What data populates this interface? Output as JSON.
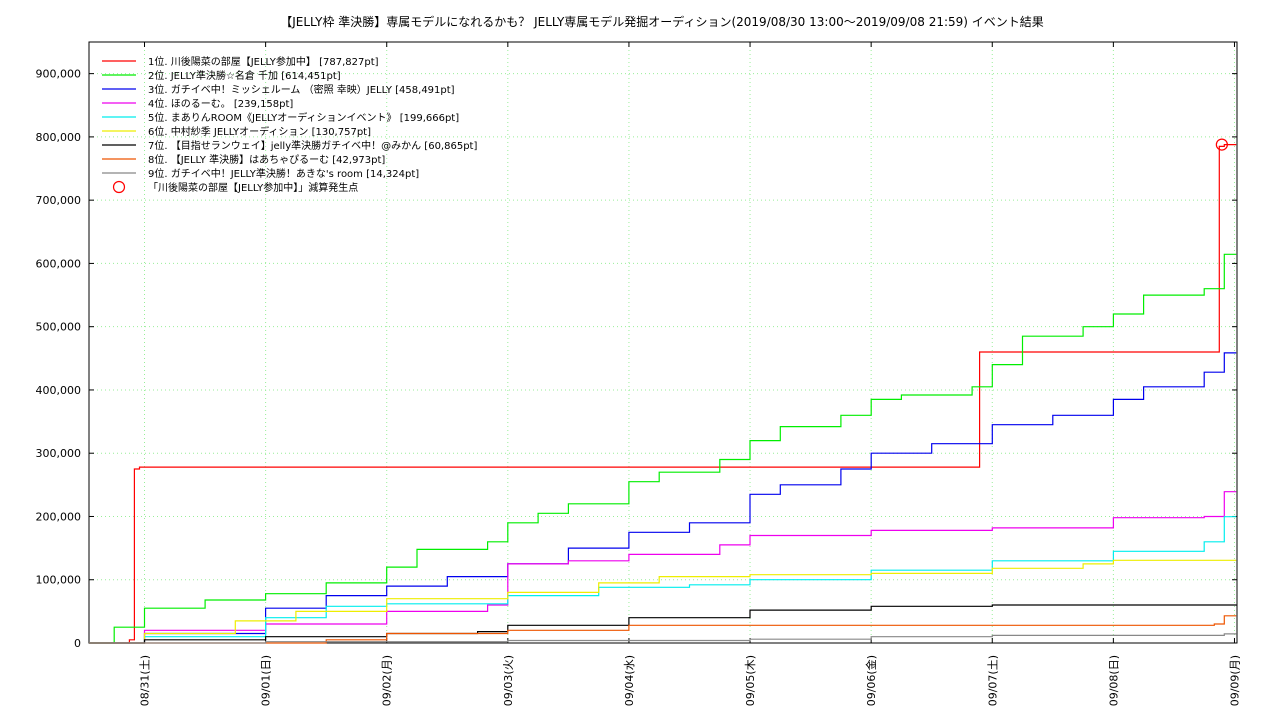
{
  "chart_data": {
    "type": "line",
    "title": "【JELLY枠 準決勝】専属モデルになれるかも？ JELLY専属モデル発掘オーディション(2019/08/30 13:00〜2019/09/08 21:59)          イベント結果",
    "xlabel": "",
    "ylabel": "",
    "x_range": [
      "2019-08-30T13:00",
      "2019-09-09T00:30"
    ],
    "ylim": [
      0,
      950000
    ],
    "grid": true,
    "legend_position": "top-left",
    "x_tick_labels": [
      {
        "t": "2019-08-31T00:00",
        "label": "08/31(土)"
      },
      {
        "t": "2019-09-01T00:00",
        "label": "09/01(日)"
      },
      {
        "t": "2019-09-02T00:00",
        "label": "09/02(月)"
      },
      {
        "t": "2019-09-03T00:00",
        "label": "09/03(火)"
      },
      {
        "t": "2019-09-04T00:00",
        "label": "09/04(水)"
      },
      {
        "t": "2019-09-05T00:00",
        "label": "09/05(木)"
      },
      {
        "t": "2019-09-06T00:00",
        "label": "09/06(金)"
      },
      {
        "t": "2019-09-07T00:00",
        "label": "09/07(土)"
      },
      {
        "t": "2019-09-08T00:00",
        "label": "09/08(日)"
      },
      {
        "t": "2019-09-09T00:00",
        "label": "09/09(月)"
      }
    ],
    "y_ticks": [
      {
        "v": 0,
        "label": "0"
      },
      {
        "v": 100000,
        "label": "100,000"
      },
      {
        "v": 200000,
        "label": "200,000"
      },
      {
        "v": 300000,
        "label": "300,000"
      },
      {
        "v": 400000,
        "label": "400,000"
      },
      {
        "v": 500000,
        "label": "500,000"
      },
      {
        "v": 600000,
        "label": "600,000"
      },
      {
        "v": 700000,
        "label": "700,000"
      },
      {
        "v": 800000,
        "label": "800,000"
      },
      {
        "v": 900000,
        "label": "900,000"
      }
    ],
    "series": [
      {
        "name": "1位. 川後陽菜の部屋【JELLY参加中】 [787,827pt]",
        "color": "#ff0000",
        "points": [
          [
            "2019-08-30T13:00",
            0
          ],
          [
            "2019-08-30T21:00",
            5000
          ],
          [
            "2019-08-30T22:00",
            275000
          ],
          [
            "2019-08-30T23:00",
            278000
          ],
          [
            "2019-09-06T21:00",
            278000
          ],
          [
            "2019-09-06T21:30",
            460000
          ],
          [
            "2019-09-08T20:30",
            460000
          ],
          [
            "2019-09-08T21:00",
            785000
          ],
          [
            "2019-09-08T21:59",
            787827
          ],
          [
            "2019-09-09T00:20",
            787827
          ]
        ]
      },
      {
        "name": "2位. JELLY準決勝☆名倉 千加 [614,451pt]",
        "color": "#00ee00",
        "points": [
          [
            "2019-08-30T13:00",
            0
          ],
          [
            "2019-08-30T18:00",
            25000
          ],
          [
            "2019-08-31T00:00",
            55000
          ],
          [
            "2019-08-31T12:00",
            68000
          ],
          [
            "2019-09-01T00:00",
            78000
          ],
          [
            "2019-09-01T12:00",
            95000
          ],
          [
            "2019-09-02T00:00",
            120000
          ],
          [
            "2019-09-02T06:00",
            148000
          ],
          [
            "2019-09-02T20:00",
            160000
          ],
          [
            "2019-09-03T00:00",
            190000
          ],
          [
            "2019-09-03T06:00",
            205000
          ],
          [
            "2019-09-03T12:00",
            220000
          ],
          [
            "2019-09-04T00:00",
            255000
          ],
          [
            "2019-09-04T06:00",
            270000
          ],
          [
            "2019-09-04T18:00",
            290000
          ],
          [
            "2019-09-05T00:00",
            320000
          ],
          [
            "2019-09-05T06:00",
            342000
          ],
          [
            "2019-09-05T18:00",
            360000
          ],
          [
            "2019-09-06T00:00",
            385000
          ],
          [
            "2019-09-06T06:00",
            392000
          ],
          [
            "2019-09-06T20:00",
            405000
          ],
          [
            "2019-09-07T00:00",
            440000
          ],
          [
            "2019-09-07T06:00",
            485000
          ],
          [
            "2019-09-07T18:00",
            500000
          ],
          [
            "2019-09-08T00:00",
            520000
          ],
          [
            "2019-09-08T06:00",
            550000
          ],
          [
            "2019-09-08T18:00",
            560000
          ],
          [
            "2019-09-08T21:59",
            614451
          ],
          [
            "2019-09-09T00:20",
            614451
          ]
        ]
      },
      {
        "name": "3位. ガチイベ中！ミッシェルーム （密照 幸映）JELLY [458,491pt]",
        "color": "#0000ee",
        "points": [
          [
            "2019-08-30T13:00",
            0
          ],
          [
            "2019-08-31T00:00",
            15000
          ],
          [
            "2019-09-01T00:00",
            55000
          ],
          [
            "2019-09-01T12:00",
            75000
          ],
          [
            "2019-09-02T00:00",
            90000
          ],
          [
            "2019-09-02T12:00",
            105000
          ],
          [
            "2019-09-03T00:00",
            125000
          ],
          [
            "2019-09-03T12:00",
            150000
          ],
          [
            "2019-09-04T00:00",
            175000
          ],
          [
            "2019-09-04T12:00",
            190000
          ],
          [
            "2019-09-05T00:00",
            235000
          ],
          [
            "2019-09-05T06:00",
            250000
          ],
          [
            "2019-09-05T18:00",
            275000
          ],
          [
            "2019-09-06T00:00",
            300000
          ],
          [
            "2019-09-06T12:00",
            315000
          ],
          [
            "2019-09-07T00:00",
            345000
          ],
          [
            "2019-09-07T12:00",
            360000
          ],
          [
            "2019-09-08T00:00",
            385000
          ],
          [
            "2019-09-08T06:00",
            405000
          ],
          [
            "2019-09-08T18:00",
            428000
          ],
          [
            "2019-09-08T21:59",
            458491
          ],
          [
            "2019-09-09T00:20",
            458491
          ]
        ]
      },
      {
        "name": "4位. ほのるーむ。 [239,158pt]",
        "color": "#ee00ee",
        "points": [
          [
            "2019-08-30T13:00",
            0
          ],
          [
            "2019-08-31T00:00",
            20000
          ],
          [
            "2019-09-01T00:00",
            30000
          ],
          [
            "2019-09-02T00:00",
            50000
          ],
          [
            "2019-09-02T20:00",
            60000
          ],
          [
            "2019-09-03T00:00",
            125000
          ],
          [
            "2019-09-03T12:00",
            130000
          ],
          [
            "2019-09-04T00:00",
            140000
          ],
          [
            "2019-09-04T18:00",
            155000
          ],
          [
            "2019-09-05T00:00",
            170000
          ],
          [
            "2019-09-06T00:00",
            178000
          ],
          [
            "2019-09-07T00:00",
            182000
          ],
          [
            "2019-09-08T00:00",
            198000
          ],
          [
            "2019-09-08T18:00",
            200000
          ],
          [
            "2019-09-08T21:59",
            239158
          ],
          [
            "2019-09-09T00:20",
            239158
          ]
        ]
      },
      {
        "name": "5位. まありんROOM《JELLYオーディションイベント》 [199,666pt]",
        "color": "#00eeee",
        "points": [
          [
            "2019-08-30T13:00",
            0
          ],
          [
            "2019-08-31T00:00",
            10000
          ],
          [
            "2019-09-01T00:00",
            40000
          ],
          [
            "2019-09-01T12:00",
            58000
          ],
          [
            "2019-09-02T00:00",
            62000
          ],
          [
            "2019-09-03T00:00",
            75000
          ],
          [
            "2019-09-03T18:00",
            88000
          ],
          [
            "2019-09-04T12:00",
            92000
          ],
          [
            "2019-09-05T00:00",
            100000
          ],
          [
            "2019-09-06T00:00",
            115000
          ],
          [
            "2019-09-07T00:00",
            130000
          ],
          [
            "2019-09-08T00:00",
            145000
          ],
          [
            "2019-09-08T18:00",
            160000
          ],
          [
            "2019-09-08T21:59",
            199666
          ],
          [
            "2019-09-09T00:20",
            199666
          ]
        ]
      },
      {
        "name": "6位. 中村紗季 JELLYオーディション [130,757pt]",
        "color": "#eeee00",
        "points": [
          [
            "2019-08-30T13:00",
            0
          ],
          [
            "2019-08-31T00:00",
            15000
          ],
          [
            "2019-08-31T18:00",
            35000
          ],
          [
            "2019-09-01T06:00",
            50000
          ],
          [
            "2019-09-02T00:00",
            70000
          ],
          [
            "2019-09-03T00:00",
            80000
          ],
          [
            "2019-09-03T18:00",
            95000
          ],
          [
            "2019-09-04T06:00",
            105000
          ],
          [
            "2019-09-05T00:00",
            108000
          ],
          [
            "2019-09-06T00:00",
            110000
          ],
          [
            "2019-09-07T00:00",
            118000
          ],
          [
            "2019-09-07T18:00",
            125000
          ],
          [
            "2019-09-08T00:00",
            130757
          ],
          [
            "2019-09-09T00:20",
            130757
          ]
        ]
      },
      {
        "name": "7位. 【目指せランウェイ】jelly準決勝ガチイベ中！@みかん [60,865pt]",
        "color": "#000000",
        "points": [
          [
            "2019-08-30T13:00",
            0
          ],
          [
            "2019-08-31T00:00",
            5000
          ],
          [
            "2019-09-01T00:00",
            10000
          ],
          [
            "2019-09-02T00:00",
            15000
          ],
          [
            "2019-09-02T18:00",
            18000
          ],
          [
            "2019-09-03T00:00",
            28000
          ],
          [
            "2019-09-04T00:00",
            40000
          ],
          [
            "2019-09-05T00:00",
            52000
          ],
          [
            "2019-09-06T00:00",
            58000
          ],
          [
            "2019-09-07T00:00",
            60000
          ],
          [
            "2019-09-09T00:20",
            60865
          ]
        ]
      },
      {
        "name": "8位. 【JELLY 準決勝】はあちゃぴるーむ [42,973pt]",
        "color": "#ee5500",
        "points": [
          [
            "2019-08-30T13:00",
            0
          ],
          [
            "2019-09-01T12:00",
            5000
          ],
          [
            "2019-09-02T00:00",
            15000
          ],
          [
            "2019-09-03T00:00",
            20000
          ],
          [
            "2019-09-04T00:00",
            28000
          ],
          [
            "2019-09-08T20:00",
            30000
          ],
          [
            "2019-09-08T21:59",
            42973
          ],
          [
            "2019-09-09T00:20",
            42973
          ]
        ]
      },
      {
        "name": "9位. ガチイベ中！JELLY準決勝！あきな's room [14,324pt]",
        "color": "#888888",
        "points": [
          [
            "2019-08-30T13:00",
            0
          ],
          [
            "2019-09-01T00:00",
            2000
          ],
          [
            "2019-09-03T00:00",
            4000
          ],
          [
            "2019-09-05T00:00",
            6000
          ],
          [
            "2019-09-06T00:00",
            10000
          ],
          [
            "2019-09-07T00:00",
            12000
          ],
          [
            "2019-09-08T21:59",
            14324
          ],
          [
            "2019-09-09T00:20",
            14324
          ]
        ]
      }
    ],
    "markers": [
      {
        "name": "「川後陽菜の部屋【JELLY参加中】」減算発生点",
        "color": "#ff0000",
        "x": "2019-09-08T21:30",
        "y": 787827
      }
    ]
  }
}
